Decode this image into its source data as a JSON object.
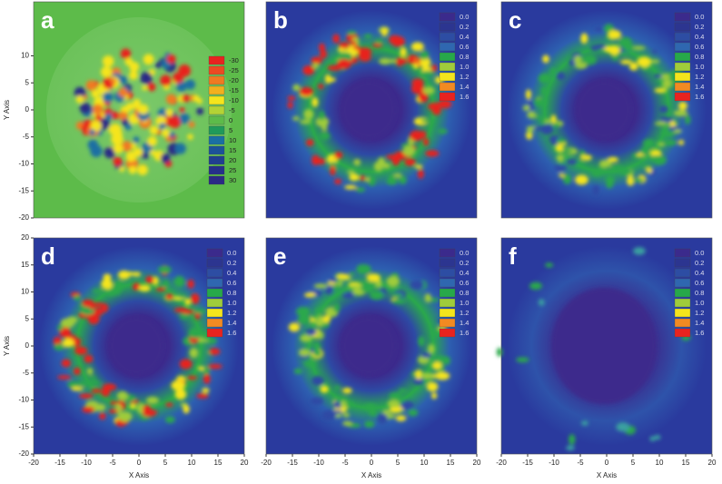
{
  "chart_data": [
    {
      "type": "heatmap",
      "label": "a",
      "ylabel": "Y Axis",
      "xlim": [
        -20,
        20
      ],
      "ylim": [
        -20,
        20
      ],
      "yticks": [
        -20,
        -15,
        -10,
        -5,
        0,
        5,
        10
      ],
      "colorbar": {
        "ticks": [
          -30,
          -25,
          -20,
          -15,
          -10,
          -5,
          0,
          5,
          10,
          15,
          20,
          25,
          30
        ],
        "colors": [
          "#e8231f",
          "#ec4a22",
          "#f07a22",
          "#f2b01e",
          "#f5e51c",
          "#b4d335",
          "#5dbb4a",
          "#1f9a5a",
          "#1a6fa3",
          "#1c5299",
          "#203f90",
          "#25308a",
          "#2a2a85"
        ]
      }
    },
    {
      "type": "heatmap",
      "label": "b",
      "xlim": [
        -20,
        20
      ],
      "ylim": [
        -20,
        20
      ],
      "colorbar": {
        "ticks": [
          {
            "value": 0,
            "label": "0.0"
          },
          0.2,
          0.4,
          0.6,
          0.8,
          {
            "value": 1,
            "label": "1.0"
          },
          1.2,
          1.4,
          1.6
        ],
        "colors": [
          "#3b2a8c",
          "#2c3590",
          "#2d4da3",
          "#2f67b0",
          "#27a84a",
          "#9fcc3b",
          "#f4e51c",
          "#f28a22",
          "#e8231f"
        ]
      }
    },
    {
      "type": "heatmap",
      "label": "c",
      "xlim": [
        -20,
        20
      ],
      "ylim": [
        -20,
        20
      ],
      "colorbar": {
        "ticks": [
          {
            "value": 0,
            "label": "0.0"
          },
          0.2,
          0.4,
          0.6,
          0.8,
          {
            "value": 1,
            "label": "1.0"
          },
          1.2,
          1.4,
          1.6
        ],
        "colors": [
          "#3b2a8c",
          "#2c3590",
          "#2d4da3",
          "#2f67b0",
          "#27a84a",
          "#9fcc3b",
          "#f4e51c",
          "#f28a22",
          "#e8231f"
        ]
      }
    },
    {
      "type": "heatmap",
      "label": "d",
      "xlabel": "X Axis",
      "ylabel": "Y Axis",
      "xlim": [
        -20,
        20
      ],
      "ylim": [
        -20,
        20
      ],
      "xticks": [
        -20,
        -15,
        -10,
        -5,
        0,
        5,
        10,
        15,
        20
      ],
      "yticks": [
        -20,
        -15,
        -10,
        -5,
        0,
        5,
        10,
        15,
        20
      ],
      "colorbar": {
        "ticks": [
          {
            "value": 0,
            "label": "0.0"
          },
          0.2,
          0.4,
          0.6,
          0.8,
          {
            "value": 1,
            "label": "1.0"
          },
          1.2,
          1.4,
          1.6
        ],
        "colors": [
          "#3b2a8c",
          "#2c3590",
          "#2d4da3",
          "#2f67b0",
          "#27a84a",
          "#9fcc3b",
          "#f4e51c",
          "#f28a22",
          "#e8231f"
        ]
      }
    },
    {
      "type": "heatmap",
      "label": "e",
      "xlabel": "X Axis",
      "xlim": [
        -20,
        20
      ],
      "ylim": [
        -20,
        20
      ],
      "xticks": [
        -20,
        -15,
        -10,
        -5,
        0,
        5,
        10,
        15,
        20
      ],
      "colorbar": {
        "ticks": [
          {
            "value": 0,
            "label": "0.0"
          },
          0.2,
          0.4,
          0.6,
          0.8,
          {
            "value": 1,
            "label": "1.0"
          },
          1.2,
          1.4,
          1.6
        ],
        "colors": [
          "#3b2a8c",
          "#2c3590",
          "#2d4da3",
          "#2f67b0",
          "#27a84a",
          "#9fcc3b",
          "#f4e51c",
          "#f28a22",
          "#e8231f"
        ]
      }
    },
    {
      "type": "heatmap",
      "label": "f",
      "xlabel": "X Axis",
      "xlim": [
        -20,
        20
      ],
      "ylim": [
        -20,
        20
      ],
      "xticks": [
        -20,
        -15,
        -10,
        -5,
        0,
        5,
        10,
        15,
        20
      ],
      "colorbar": {
        "ticks": [
          {
            "value": 0,
            "label": "0.0"
          },
          0.2,
          0.4,
          0.6,
          0.8,
          {
            "value": 1,
            "label": "1.0"
          },
          1.2,
          1.4,
          1.6
        ],
        "colors": [
          "#3b2a8c",
          "#2c3590",
          "#2d4da3",
          "#2f67b0",
          "#27a84a",
          "#9fcc3b",
          "#f4e51c",
          "#f28a22",
          "#e8231f"
        ]
      }
    }
  ]
}
